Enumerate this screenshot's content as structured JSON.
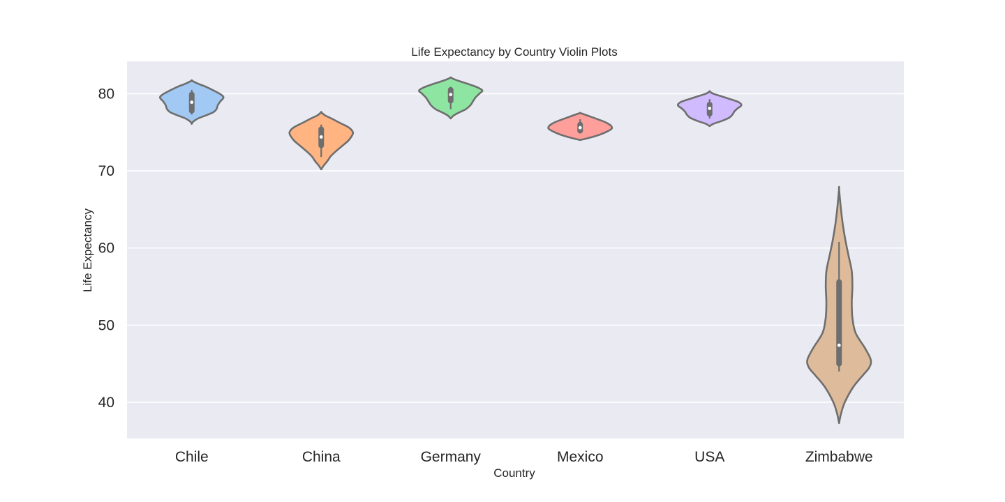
{
  "chart_data": {
    "type": "violin",
    "title": "Life Expectancy by Country Violin Plots",
    "xlabel": "Country",
    "ylabel": "Life Expectancy",
    "ylim": [
      35.3,
      84.2
    ],
    "yticks": [
      40,
      50,
      60,
      70,
      80
    ],
    "grid": true,
    "background": "#eaeaf2",
    "gridColor": "#ffffff",
    "outlineColor": "#6e6e6e",
    "categories": [
      "Chile",
      "China",
      "Germany",
      "Mexico",
      "USA",
      "Zimbabwe"
    ],
    "series": [
      {
        "category": "Chile",
        "color": "#a1c9f4",
        "min": 77.3,
        "q1": 77.8,
        "median": 78.9,
        "q3": 79.9,
        "max": 80.5,
        "kde_min": 76.1,
        "kde_max": 81.7,
        "profile": [
          [
            76.1,
            0.0
          ],
          [
            76.4,
            0.05
          ],
          [
            76.8,
            0.2
          ],
          [
            77.2,
            0.45
          ],
          [
            77.6,
            0.68
          ],
          [
            78.0,
            0.78
          ],
          [
            78.5,
            0.82
          ],
          [
            79.0,
            0.9
          ],
          [
            79.5,
            1.0
          ],
          [
            79.9,
            0.92
          ],
          [
            80.4,
            0.7
          ],
          [
            80.9,
            0.45
          ],
          [
            81.3,
            0.2
          ],
          [
            81.7,
            0.0
          ]
        ]
      },
      {
        "category": "China",
        "color": "#ffb482",
        "min": 71.8,
        "q1": 73.3,
        "median": 74.4,
        "q3": 75.4,
        "max": 76.0,
        "kde_min": 70.2,
        "kde_max": 77.6,
        "profile": [
          [
            70.2,
            0.0
          ],
          [
            70.7,
            0.08
          ],
          [
            71.3,
            0.2
          ],
          [
            71.9,
            0.3
          ],
          [
            72.5,
            0.45
          ],
          [
            73.2,
            0.65
          ],
          [
            73.9,
            0.85
          ],
          [
            74.5,
            0.96
          ],
          [
            75.0,
            1.0
          ],
          [
            75.6,
            0.88
          ],
          [
            76.2,
            0.6
          ],
          [
            76.8,
            0.32
          ],
          [
            77.2,
            0.12
          ],
          [
            77.6,
            0.0
          ]
        ]
      },
      {
        "category": "Germany",
        "color": "#8de5a1",
        "min": 78.0,
        "q1": 79.1,
        "median": 79.9,
        "q3": 80.5,
        "max": 80.9,
        "kde_min": 76.8,
        "kde_max": 82.1,
        "profile": [
          [
            76.8,
            0.0
          ],
          [
            77.2,
            0.1
          ],
          [
            77.6,
            0.28
          ],
          [
            78.0,
            0.48
          ],
          [
            78.5,
            0.62
          ],
          [
            79.0,
            0.7
          ],
          [
            79.5,
            0.78
          ],
          [
            80.0,
            0.9
          ],
          [
            80.4,
            1.0
          ],
          [
            80.8,
            0.86
          ],
          [
            81.2,
            0.6
          ],
          [
            81.6,
            0.3
          ],
          [
            81.9,
            0.1
          ],
          [
            82.1,
            0.0
          ]
        ]
      },
      {
        "category": "Mexico",
        "color": "#ff9f9b",
        "min": 74.9,
        "q1": 75.2,
        "median": 75.6,
        "q3": 76.0,
        "max": 76.7,
        "kde_min": 74.0,
        "kde_max": 77.5,
        "profile": [
          [
            74.0,
            0.0
          ],
          [
            74.3,
            0.3
          ],
          [
            74.7,
            0.62
          ],
          [
            75.1,
            0.85
          ],
          [
            75.5,
            1.0
          ],
          [
            75.9,
            0.96
          ],
          [
            76.3,
            0.8
          ],
          [
            76.7,
            0.55
          ],
          [
            77.0,
            0.35
          ],
          [
            77.3,
            0.15
          ],
          [
            77.5,
            0.0
          ]
        ]
      },
      {
        "category": "USA",
        "color": "#d0bbff",
        "min": 76.8,
        "q1": 77.4,
        "median": 78.1,
        "q3": 78.6,
        "max": 79.3,
        "kde_min": 75.8,
        "kde_max": 80.3,
        "profile": [
          [
            75.8,
            0.0
          ],
          [
            76.1,
            0.12
          ],
          [
            76.5,
            0.4
          ],
          [
            76.9,
            0.62
          ],
          [
            77.3,
            0.72
          ],
          [
            77.7,
            0.78
          ],
          [
            78.1,
            0.88
          ],
          [
            78.5,
            1.0
          ],
          [
            78.9,
            0.92
          ],
          [
            79.3,
            0.65
          ],
          [
            79.7,
            0.35
          ],
          [
            80.0,
            0.12
          ],
          [
            80.3,
            0.0
          ]
        ]
      },
      {
        "category": "Zimbabwe",
        "color": "#debb9b",
        "min": 44.0,
        "q1": 45.0,
        "median": 47.4,
        "q3": 55.6,
        "max": 60.8,
        "kde_min": 37.3,
        "kde_max": 67.6,
        "profile": [
          [
            37.3,
            0.0
          ],
          [
            38.5,
            0.06
          ],
          [
            40.0,
            0.18
          ],
          [
            42.0,
            0.45
          ],
          [
            43.5,
            0.75
          ],
          [
            44.5,
            0.95
          ],
          [
            45.5,
            1.0
          ],
          [
            47.0,
            0.82
          ],
          [
            49.0,
            0.52
          ],
          [
            51.0,
            0.42
          ],
          [
            53.0,
            0.4
          ],
          [
            55.0,
            0.42
          ],
          [
            57.0,
            0.4
          ],
          [
            59.0,
            0.3
          ],
          [
            61.0,
            0.2
          ],
          [
            63.0,
            0.12
          ],
          [
            65.0,
            0.06
          ],
          [
            67.6,
            0.0
          ]
        ]
      }
    ]
  }
}
